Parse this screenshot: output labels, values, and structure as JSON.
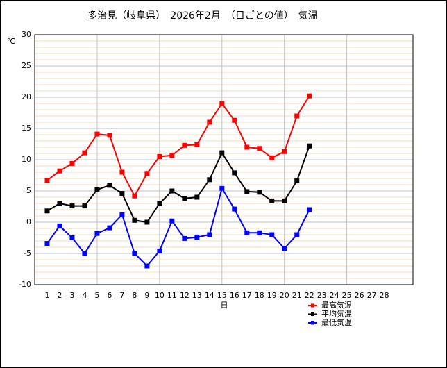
{
  "chart_data": {
    "type": "line",
    "title": "多治見（岐阜県）　2026年2月　（日ごとの値）　気温",
    "y_label": "℃",
    "x_label": "日",
    "x": [
      1,
      2,
      3,
      4,
      5,
      6,
      7,
      8,
      9,
      10,
      11,
      12,
      13,
      14,
      15,
      16,
      17,
      18,
      19,
      20,
      21,
      22,
      23,
      24,
      25,
      26,
      27,
      28
    ],
    "xlim": [
      0,
      30.3
    ],
    "ylim": [
      -10,
      30
    ],
    "yticks": [
      -10,
      -5,
      0,
      5,
      10,
      15,
      20,
      25,
      30
    ],
    "grid": true,
    "minor_grid": true,
    "legend": "bottom-right",
    "series": [
      {
        "name": "最高気温",
        "color": "#ff0000",
        "values": [
          6.7,
          8.2,
          9.4,
          11.1,
          14.1,
          13.9,
          8.0,
          4.2,
          7.8,
          10.5,
          10.7,
          12.3,
          12.4,
          16.0,
          19.0,
          16.3,
          12.0,
          11.8,
          10.3,
          11.3,
          17.0,
          20.2,
          null,
          null,
          null,
          null,
          null,
          null
        ]
      },
      {
        "name": "平均気温",
        "color": "#000000",
        "values": [
          1.8,
          3.0,
          2.6,
          2.6,
          5.2,
          5.9,
          4.6,
          0.3,
          0.0,
          3.0,
          5.0,
          3.8,
          4.0,
          6.8,
          11.1,
          7.9,
          4.9,
          4.8,
          3.4,
          3.4,
          6.6,
          12.2,
          null,
          null,
          null,
          null,
          null,
          null
        ]
      },
      {
        "name": "最低気温",
        "color": "#0000ff",
        "values": [
          -3.4,
          -0.6,
          -2.5,
          -5.0,
          -1.8,
          -0.9,
          1.2,
          -5.0,
          -7.0,
          -4.6,
          0.2,
          -2.6,
          -2.4,
          -2.0,
          5.4,
          2.1,
          -1.7,
          -1.7,
          -2.0,
          -4.2,
          -2.0,
          2.0,
          null,
          null,
          null,
          null,
          null,
          null
        ]
      }
    ]
  }
}
